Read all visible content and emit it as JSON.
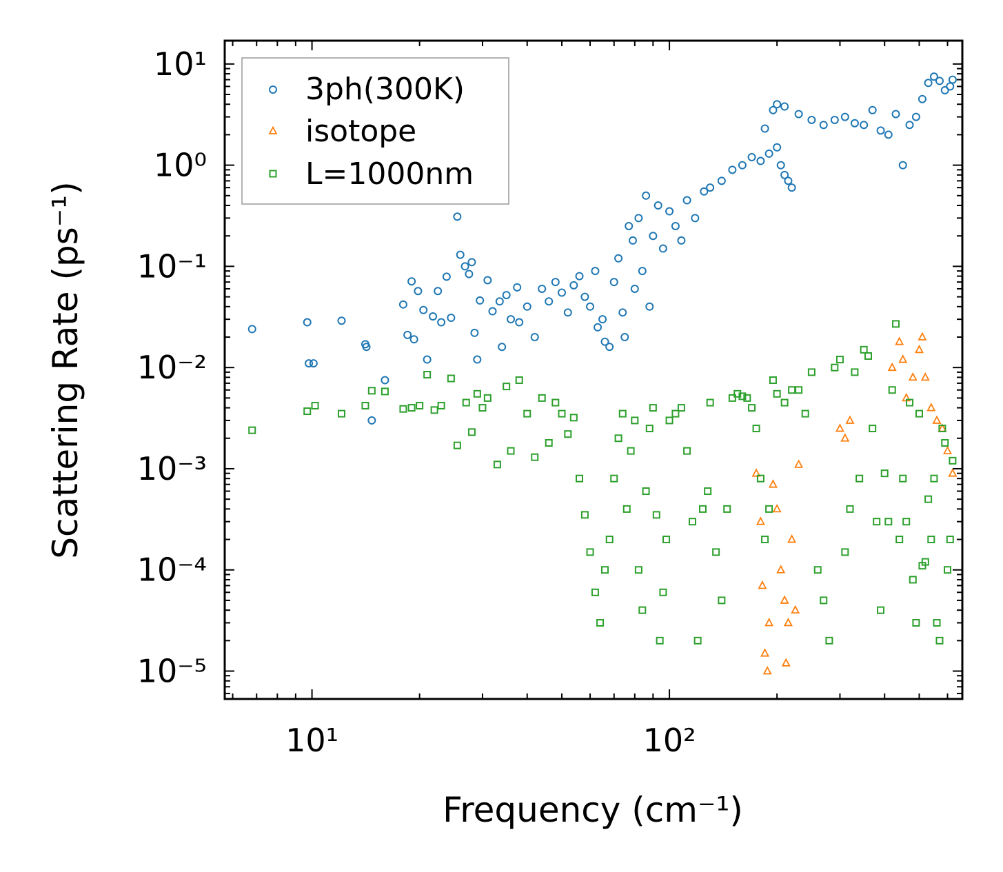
{
  "chart_data": {
    "type": "scatter",
    "title": "",
    "xlabel": "Frequency (cm⁻¹)",
    "ylabel": "Scattering Rate (ps⁻¹)",
    "xscale": "log",
    "yscale": "log",
    "xlim": [
      5.7,
      660
    ],
    "ylim": [
      5.3e-06,
      17
    ],
    "x_ticks": [
      {
        "value": 10,
        "label": "10¹"
      },
      {
        "value": 100,
        "label": "10²"
      }
    ],
    "y_ticks": [
      {
        "value": 10,
        "label": "10¹"
      },
      {
        "value": 1,
        "label": "10⁰"
      },
      {
        "value": 0.1,
        "label": "10⁻¹"
      },
      {
        "value": 0.01,
        "label": "10⁻²"
      },
      {
        "value": 0.001,
        "label": "10⁻³"
      },
      {
        "value": 0.0001,
        "label": "10⁻⁴"
      },
      {
        "value": 1e-05,
        "label": "10⁻⁵"
      }
    ],
    "legend_position": "top-left",
    "series": [
      {
        "name": "3ph(300K)",
        "marker": "circle",
        "color": "#1f77b4",
        "points": [
          [
            6.8,
            0.024
          ],
          [
            9.7,
            0.028
          ],
          [
            9.8,
            0.011
          ],
          [
            10.1,
            0.011
          ],
          [
            12.1,
            0.029
          ],
          [
            14.1,
            0.017
          ],
          [
            14.2,
            0.016
          ],
          [
            14.7,
            0.003
          ],
          [
            16,
            0.0075
          ],
          [
            18,
            0.042
          ],
          [
            18.5,
            0.021
          ],
          [
            19,
            0.071
          ],
          [
            19.3,
            0.019
          ],
          [
            19.8,
            0.057
          ],
          [
            20.5,
            0.037
          ],
          [
            21,
            0.012
          ],
          [
            21.8,
            0.032
          ],
          [
            22.5,
            0.057
          ],
          [
            23,
            0.028
          ],
          [
            23.8,
            0.079
          ],
          [
            24.5,
            0.031
          ],
          [
            25.5,
            0.31
          ],
          [
            26,
            0.13
          ],
          [
            26.8,
            0.1
          ],
          [
            27.5,
            0.084
          ],
          [
            28,
            0.11
          ],
          [
            28.5,
            0.022
          ],
          [
            29,
            0.012
          ],
          [
            29.5,
            0.046
          ],
          [
            31,
            0.073
          ],
          [
            32,
            0.036
          ],
          [
            33.5,
            0.045
          ],
          [
            34,
            0.016
          ],
          [
            35,
            0.052
          ],
          [
            36,
            0.03
          ],
          [
            37.5,
            0.062
          ],
          [
            38,
            0.028
          ],
          [
            40,
            0.04
          ],
          [
            42,
            0.02
          ],
          [
            44,
            0.06
          ],
          [
            46,
            0.045
          ],
          [
            48,
            0.07
          ],
          [
            50,
            0.055
          ],
          [
            52,
            0.035
          ],
          [
            54,
            0.065
          ],
          [
            56,
            0.08
          ],
          [
            58,
            0.05
          ],
          [
            60,
            0.04
          ],
          [
            62,
            0.09
          ],
          [
            63,
            0.025
          ],
          [
            65,
            0.03
          ],
          [
            66,
            0.018
          ],
          [
            68,
            0.016
          ],
          [
            70,
            0.07
          ],
          [
            72,
            0.12
          ],
          [
            74,
            0.035
          ],
          [
            75,
            0.02
          ],
          [
            77,
            0.25
          ],
          [
            79,
            0.18
          ],
          [
            80,
            0.06
          ],
          [
            82,
            0.3
          ],
          [
            84,
            0.09
          ],
          [
            86,
            0.5
          ],
          [
            88,
            0.04
          ],
          [
            90,
            0.2
          ],
          [
            93,
            0.4
          ],
          [
            96,
            0.15
          ],
          [
            100,
            0.35
          ],
          [
            104,
            0.25
          ],
          [
            108,
            0.18
          ],
          [
            112,
            0.45
          ],
          [
            118,
            0.3
          ],
          [
            125,
            0.55
          ],
          [
            130,
            0.6
          ],
          [
            140,
            0.7
          ],
          [
            150,
            0.9
          ],
          [
            160,
            1.0
          ],
          [
            170,
            1.2
          ],
          [
            180,
            1.1
          ],
          [
            190,
            1.3
          ],
          [
            200,
            1.5
          ],
          [
            205,
            1.0
          ],
          [
            210,
            0.8
          ],
          [
            215,
            0.7
          ],
          [
            220,
            0.6
          ],
          [
            185,
            2.3
          ],
          [
            195,
            3.5
          ],
          [
            200,
            4.0
          ],
          [
            210,
            3.8
          ],
          [
            230,
            3.2
          ],
          [
            250,
            2.8
          ],
          [
            270,
            2.5
          ],
          [
            290,
            2.8
          ],
          [
            310,
            3.0
          ],
          [
            330,
            2.6
          ],
          [
            350,
            2.5
          ],
          [
            370,
            3.5
          ],
          [
            390,
            2.2
          ],
          [
            410,
            2.0
          ],
          [
            430,
            3.2
          ],
          [
            450,
            1.0
          ],
          [
            470,
            2.5
          ],
          [
            490,
            3.0
          ],
          [
            510,
            4.5
          ],
          [
            530,
            6.5
          ],
          [
            550,
            7.5
          ],
          [
            570,
            6.8
          ],
          [
            590,
            5.5
          ],
          [
            610,
            6.0
          ],
          [
            620,
            7.0
          ]
        ]
      },
      {
        "name": "isotope",
        "marker": "triangle",
        "color": "#ff7f0e",
        "points": [
          [
            175,
            0.0009
          ],
          [
            180,
            0.0003
          ],
          [
            182,
            7e-05
          ],
          [
            185,
            1.5e-05
          ],
          [
            188,
            1e-05
          ],
          [
            190,
            3e-05
          ],
          [
            195,
            0.0007
          ],
          [
            200,
            0.0004
          ],
          [
            205,
            0.0001
          ],
          [
            210,
            5e-05
          ],
          [
            212,
            1.2e-05
          ],
          [
            215,
            3e-05
          ],
          [
            220,
            0.0002
          ],
          [
            225,
            4e-05
          ],
          [
            230,
            0.0011
          ],
          [
            300,
            0.0025
          ],
          [
            310,
            0.002
          ],
          [
            320,
            0.003
          ],
          [
            420,
            0.01
          ],
          [
            440,
            0.018
          ],
          [
            450,
            0.012
          ],
          [
            460,
            0.005
          ],
          [
            480,
            0.008
          ],
          [
            500,
            0.015
          ],
          [
            510,
            0.02
          ],
          [
            520,
            0.008
          ],
          [
            540,
            0.004
          ],
          [
            560,
            0.003
          ],
          [
            580,
            0.0025
          ],
          [
            600,
            0.0015
          ],
          [
            620,
            0.0009
          ]
        ]
      },
      {
        "name": "L=1000nm",
        "marker": "square",
        "color": "#2ca02c",
        "points": [
          [
            6.8,
            0.0024
          ],
          [
            9.7,
            0.0037
          ],
          [
            10.2,
            0.0042
          ],
          [
            12.1,
            0.0035
          ],
          [
            14.1,
            0.0042
          ],
          [
            14.7,
            0.0059
          ],
          [
            16,
            0.0058
          ],
          [
            18,
            0.0039
          ],
          [
            19,
            0.004
          ],
          [
            20,
            0.0042
          ],
          [
            21,
            0.0085
          ],
          [
            22,
            0.0038
          ],
          [
            23,
            0.0042
          ],
          [
            24.5,
            0.0078
          ],
          [
            25.5,
            0.0017
          ],
          [
            27,
            0.0045
          ],
          [
            28,
            0.0023
          ],
          [
            29,
            0.0055
          ],
          [
            30,
            0.004
          ],
          [
            31,
            0.005
          ],
          [
            33,
            0.0011
          ],
          [
            35,
            0.0065
          ],
          [
            36,
            0.0015
          ],
          [
            38,
            0.0075
          ],
          [
            40,
            0.0035
          ],
          [
            42,
            0.0013
          ],
          [
            44,
            0.005
          ],
          [
            46,
            0.0018
          ],
          [
            48,
            0.0045
          ],
          [
            50,
            0.0035
          ],
          [
            52,
            0.0022
          ],
          [
            54,
            0.0032
          ],
          [
            56,
            0.0008
          ],
          [
            58,
            0.00035
          ],
          [
            60,
            0.00015
          ],
          [
            62,
            6e-05
          ],
          [
            64,
            3e-05
          ],
          [
            66,
            0.0001
          ],
          [
            68,
            0.0002
          ],
          [
            70,
            0.0008
          ],
          [
            72,
            0.002
          ],
          [
            74,
            0.0035
          ],
          [
            76,
            0.0004
          ],
          [
            78,
            0.0015
          ],
          [
            80,
            0.003
          ],
          [
            82,
            0.0001
          ],
          [
            84,
            4e-05
          ],
          [
            86,
            0.0006
          ],
          [
            88,
            0.0025
          ],
          [
            90,
            0.004
          ],
          [
            92,
            0.00035
          ],
          [
            94,
            2e-05
          ],
          [
            96,
            6e-05
          ],
          [
            98,
            0.0002
          ],
          [
            100,
            0.003
          ],
          [
            104,
            0.0035
          ],
          [
            108,
            0.004
          ],
          [
            112,
            0.0015
          ],
          [
            116,
            0.0003
          ],
          [
            120,
            2e-05
          ],
          [
            124,
            0.0004
          ],
          [
            128,
            0.0006
          ],
          [
            130,
            0.0045
          ],
          [
            135,
            0.00015
          ],
          [
            140,
            5e-05
          ],
          [
            145,
            0.0004
          ],
          [
            150,
            0.005
          ],
          [
            155,
            0.0055
          ],
          [
            160,
            0.0052
          ],
          [
            165,
            0.005
          ],
          [
            170,
            0.004
          ],
          [
            175,
            0.0025
          ],
          [
            180,
            0.0008
          ],
          [
            185,
            0.0002
          ],
          [
            190,
            0.0004
          ],
          [
            195,
            0.0075
          ],
          [
            200,
            0.0055
          ],
          [
            210,
            0.0045
          ],
          [
            220,
            0.006
          ],
          [
            230,
            0.006
          ],
          [
            240,
            0.0035
          ],
          [
            250,
            0.009
          ],
          [
            260,
            0.0001
          ],
          [
            270,
            5e-05
          ],
          [
            280,
            2e-05
          ],
          [
            290,
            0.01
          ],
          [
            300,
            0.012
          ],
          [
            310,
            0.00015
          ],
          [
            320,
            0.0004
          ],
          [
            330,
            0.009
          ],
          [
            340,
            0.0008
          ],
          [
            350,
            0.015
          ],
          [
            360,
            0.013
          ],
          [
            370,
            0.0025
          ],
          [
            380,
            0.0003
          ],
          [
            390,
            4e-05
          ],
          [
            400,
            0.0009
          ],
          [
            410,
            0.0003
          ],
          [
            420,
            0.006
          ],
          [
            430,
            0.027
          ],
          [
            440,
            0.0002
          ],
          [
            450,
            0.0008
          ],
          [
            460,
            0.0003
          ],
          [
            470,
            0.0045
          ],
          [
            480,
            8e-05
          ],
          [
            490,
            3e-05
          ],
          [
            500,
            0.0035
          ],
          [
            510,
            0.00011
          ],
          [
            520,
            0.00012
          ],
          [
            530,
            0.0005
          ],
          [
            540,
            0.0002
          ],
          [
            550,
            0.0008
          ],
          [
            560,
            3e-05
          ],
          [
            570,
            2e-05
          ],
          [
            580,
            0.0025
          ],
          [
            590,
            0.0018
          ],
          [
            600,
            0.0001
          ],
          [
            610,
            0.0002
          ],
          [
            620,
            0.0012
          ]
        ]
      }
    ]
  }
}
